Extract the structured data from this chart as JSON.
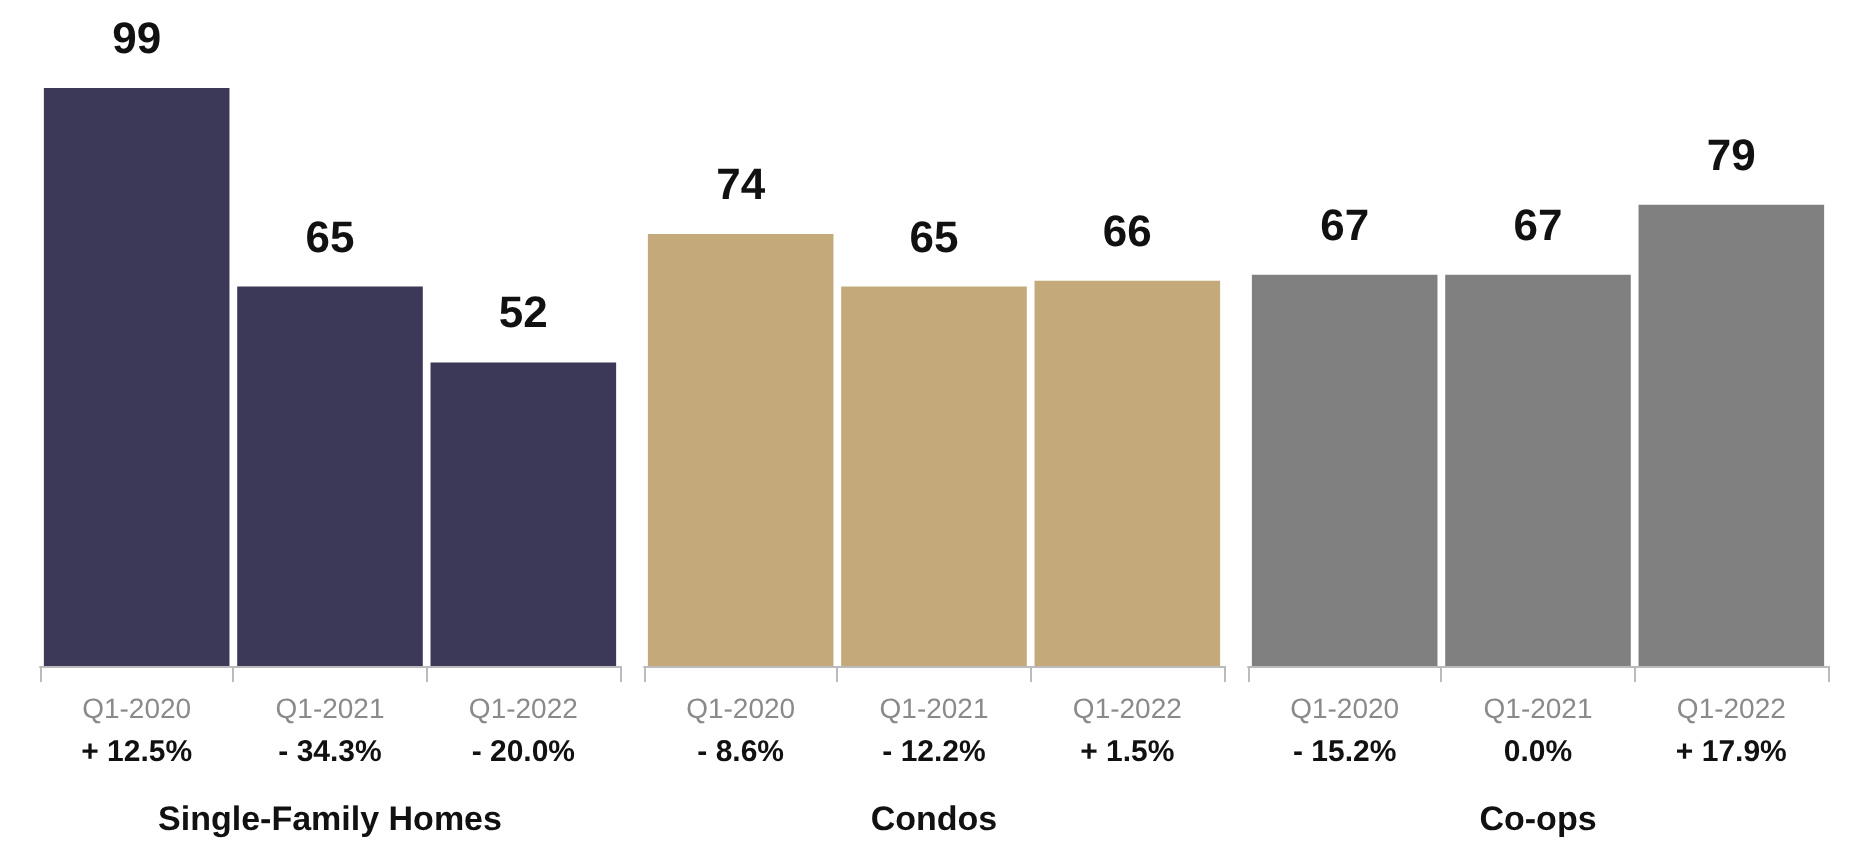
{
  "chart_data": [
    {
      "type": "bar",
      "xlabel": "Single-Family Homes",
      "categories": [
        "Q1-2020",
        "Q1-2021",
        "Q1-2022"
      ],
      "values": [
        99,
        65,
        52
      ],
      "color": "#3b3858",
      "data_labels": true,
      "annotations": [
        "+ 12.5%",
        "- 34.3%",
        "- 20.0%"
      ]
    },
    {
      "type": "bar",
      "xlabel": "Condos",
      "categories": [
        "Q1-2020",
        "Q1-2021",
        "Q1-2022"
      ],
      "values": [
        74,
        65,
        66
      ],
      "color": "#c4a97a",
      "data_labels": true,
      "annotations": [
        "- 8.6%",
        "- 12.2%",
        "+ 1.5%"
      ]
    },
    {
      "type": "bar",
      "xlabel": "Co-ops",
      "categories": [
        "Q1-2020",
        "Q1-2021",
        "Q1-2022"
      ],
      "values": [
        67,
        67,
        79
      ],
      "color": "#808080",
      "data_labels": true,
      "annotations": [
        "- 15.2%",
        "0.0%",
        "+ 17.9%"
      ]
    }
  ]
}
